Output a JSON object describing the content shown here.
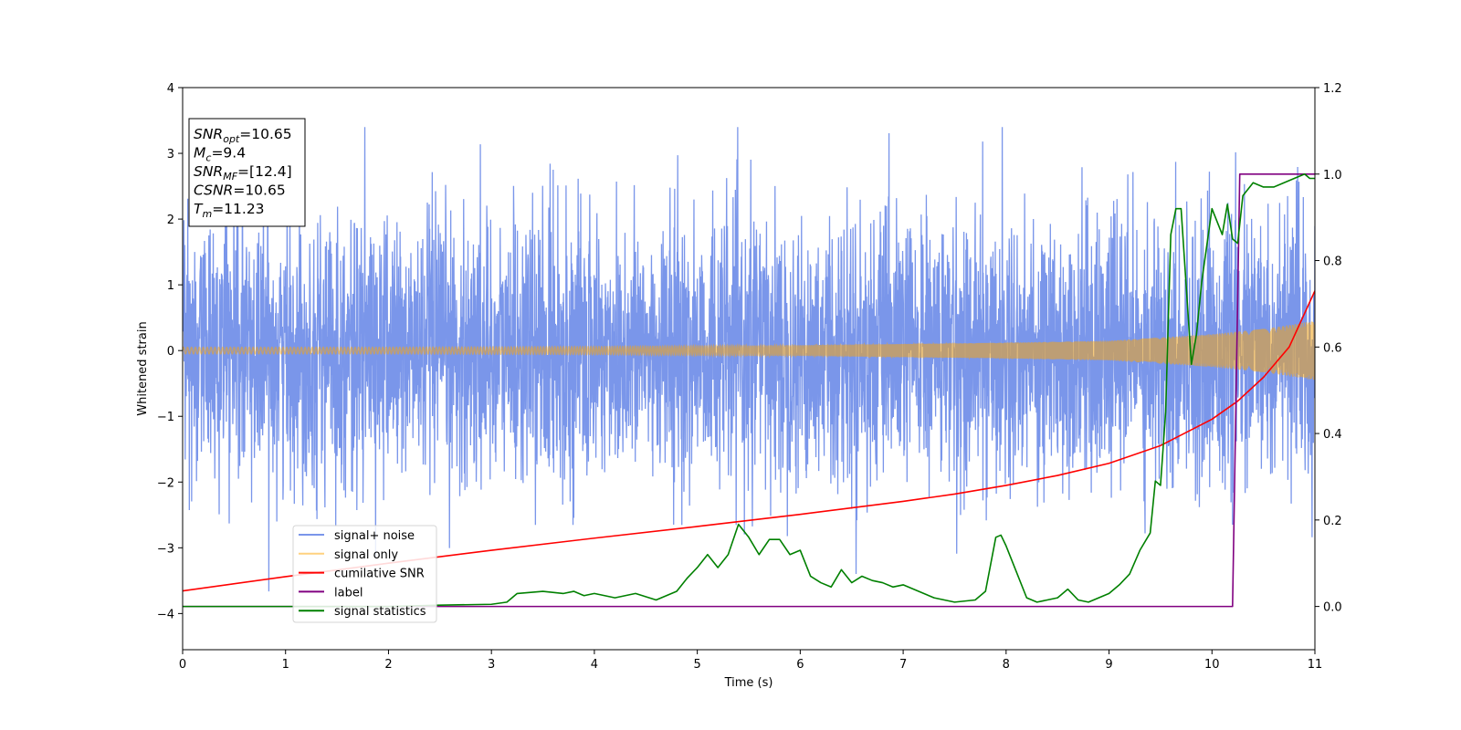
{
  "chart_data": {
    "type": "line",
    "xlabel": "Time (s)",
    "ylabel": "Whitened strain",
    "xlim": [
      0,
      11
    ],
    "ylim": [
      -4.55,
      4
    ],
    "y2lim": [
      -0.1,
      1.2
    ],
    "x_ticks": [
      0,
      1,
      2,
      3,
      4,
      5,
      6,
      7,
      8,
      9,
      10,
      11
    ],
    "y_ticks": [
      -4,
      -3,
      -2,
      -1,
      0,
      1,
      2,
      3,
      4
    ],
    "y2_ticks": [
      0.0,
      0.2,
      0.4,
      0.6,
      0.8,
      1.0,
      1.2
    ],
    "grid": false,
    "legend_position": "lower-left",
    "annotation_box": {
      "position": "top-left",
      "lines": [
        {
          "main": "SNR",
          "sub": "opt",
          "value": "=10.65"
        },
        {
          "main": "M",
          "sub": "c",
          "value": "=9.4"
        },
        {
          "main": "SNR",
          "sub": "MF",
          "value": "=[12.4]"
        },
        {
          "main": "CSNR",
          "sub": "",
          "value": "=10.65"
        },
        {
          "main": "T",
          "sub": "m",
          "value": "=11.23"
        }
      ]
    },
    "series": [
      {
        "name": "signal+ noise",
        "axis": "left",
        "color": "#4169e1",
        "style": "noise",
        "noise_std": 1.0,
        "x_range": [
          0,
          11
        ],
        "y_range_observed": [
          -4.15,
          3.4
        ]
      },
      {
        "name": "signal only",
        "axis": "left",
        "color": "#ffa500",
        "style": "chirp",
        "amplitude_points": [
          [
            0,
            0.05
          ],
          [
            2,
            0.05
          ],
          [
            4,
            0.06
          ],
          [
            6,
            0.08
          ],
          [
            8,
            0.12
          ],
          [
            9,
            0.15
          ],
          [
            10,
            0.25
          ],
          [
            10.5,
            0.33
          ],
          [
            11,
            0.45
          ]
        ]
      },
      {
        "name": "cumilative SNR",
        "axis": "right",
        "color": "#ff0000",
        "style": "line",
        "x": [
          0,
          1,
          2,
          3,
          4,
          5,
          6,
          7,
          7.5,
          8,
          8.5,
          9,
          9.5,
          10,
          10.25,
          10.5,
          10.75,
          11
        ],
        "y": [
          0.036,
          0.069,
          0.1,
          0.13,
          0.158,
          0.185,
          0.213,
          0.243,
          0.26,
          0.28,
          0.303,
          0.331,
          0.372,
          0.433,
          0.475,
          0.53,
          0.6,
          0.73
        ]
      },
      {
        "name": "label",
        "axis": "right",
        "color": "#800080",
        "style": "line",
        "x": [
          0,
          10.2,
          10.27,
          11
        ],
        "y": [
          0,
          0,
          1,
          1
        ]
      },
      {
        "name": "signal statistics",
        "axis": "right",
        "color": "#008000",
        "style": "line",
        "x": [
          0,
          1,
          2,
          2.5,
          3,
          3.15,
          3.25,
          3.5,
          3.7,
          3.8,
          3.9,
          4.0,
          4.2,
          4.4,
          4.6,
          4.8,
          4.9,
          5.0,
          5.1,
          5.15,
          5.2,
          5.3,
          5.4,
          5.5,
          5.6,
          5.7,
          5.8,
          5.9,
          6.0,
          6.1,
          6.2,
          6.3,
          6.4,
          6.5,
          6.6,
          6.7,
          6.8,
          6.9,
          7.0,
          7.1,
          7.2,
          7.3,
          7.4,
          7.5,
          7.7,
          7.8,
          7.9,
          7.95,
          8.0,
          8.1,
          8.2,
          8.3,
          8.4,
          8.5,
          8.6,
          8.7,
          8.8,
          8.9,
          9.0,
          9.1,
          9.2,
          9.3,
          9.4,
          9.45,
          9.5,
          9.55,
          9.6,
          9.65,
          9.7,
          9.8,
          9.85,
          9.9,
          10.0,
          10.1,
          10.15,
          10.2,
          10.25,
          10.3,
          10.4,
          10.5,
          10.6,
          10.7,
          10.8,
          10.9,
          10.95,
          11.0
        ],
        "y": [
          0,
          0,
          0,
          0.003,
          0.005,
          0.01,
          0.03,
          0.035,
          0.03,
          0.035,
          0.025,
          0.03,
          0.02,
          0.03,
          0.015,
          0.035,
          0.065,
          0.09,
          0.12,
          0.105,
          0.09,
          0.12,
          0.19,
          0.16,
          0.12,
          0.155,
          0.155,
          0.12,
          0.13,
          0.07,
          0.055,
          0.045,
          0.085,
          0.055,
          0.07,
          0.06,
          0.055,
          0.045,
          0.05,
          0.04,
          0.03,
          0.02,
          0.015,
          0.01,
          0.015,
          0.035,
          0.16,
          0.165,
          0.14,
          0.08,
          0.02,
          0.01,
          0.015,
          0.02,
          0.04,
          0.015,
          0.01,
          0.02,
          0.03,
          0.05,
          0.075,
          0.13,
          0.17,
          0.29,
          0.28,
          0.45,
          0.86,
          0.92,
          0.92,
          0.56,
          0.63,
          0.75,
          0.92,
          0.86,
          0.93,
          0.85,
          0.84,
          0.95,
          0.98,
          0.97,
          0.97,
          0.98,
          0.99,
          1.0,
          0.99,
          0.99
        ]
      }
    ]
  }
}
